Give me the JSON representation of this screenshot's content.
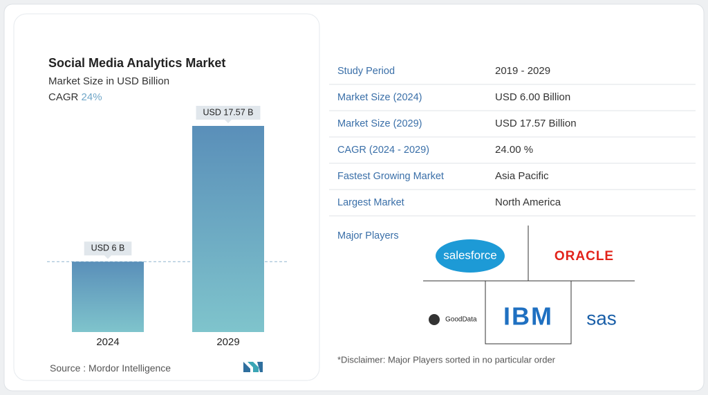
{
  "chart_data": {
    "type": "bar",
    "title": "Social Media Analytics Market",
    "subtitle": "Market Size in USD Billion",
    "cagr_label": "CAGR",
    "cagr_value": "24%",
    "categories": [
      "2024",
      "2029"
    ],
    "values": [
      6,
      17.57
    ],
    "value_labels": [
      "USD 6 B",
      "USD 17.57 B"
    ],
    "source_label": "Source :",
    "source": "Mordor Intelligence"
  },
  "table": {
    "rows": [
      [
        "Study Period",
        "2019 - 2029"
      ],
      [
        "Market Size (2024)",
        "USD 6.00 Billion"
      ],
      [
        "Market Size (2029)",
        "USD 17.57 Billion"
      ],
      [
        "CAGR (2024 - 2029)",
        "24.00 %"
      ],
      [
        "Fastest Growing Market",
        "Asia Pacific"
      ],
      [
        "Largest Market",
        "North America"
      ]
    ]
  },
  "players": {
    "title": "Major Players",
    "names": [
      "salesforce",
      "ORACLE",
      "GoodData",
      "IBM",
      "sas"
    ],
    "disclaimer": "*Disclaimer: Major Players sorted in no particular order"
  }
}
